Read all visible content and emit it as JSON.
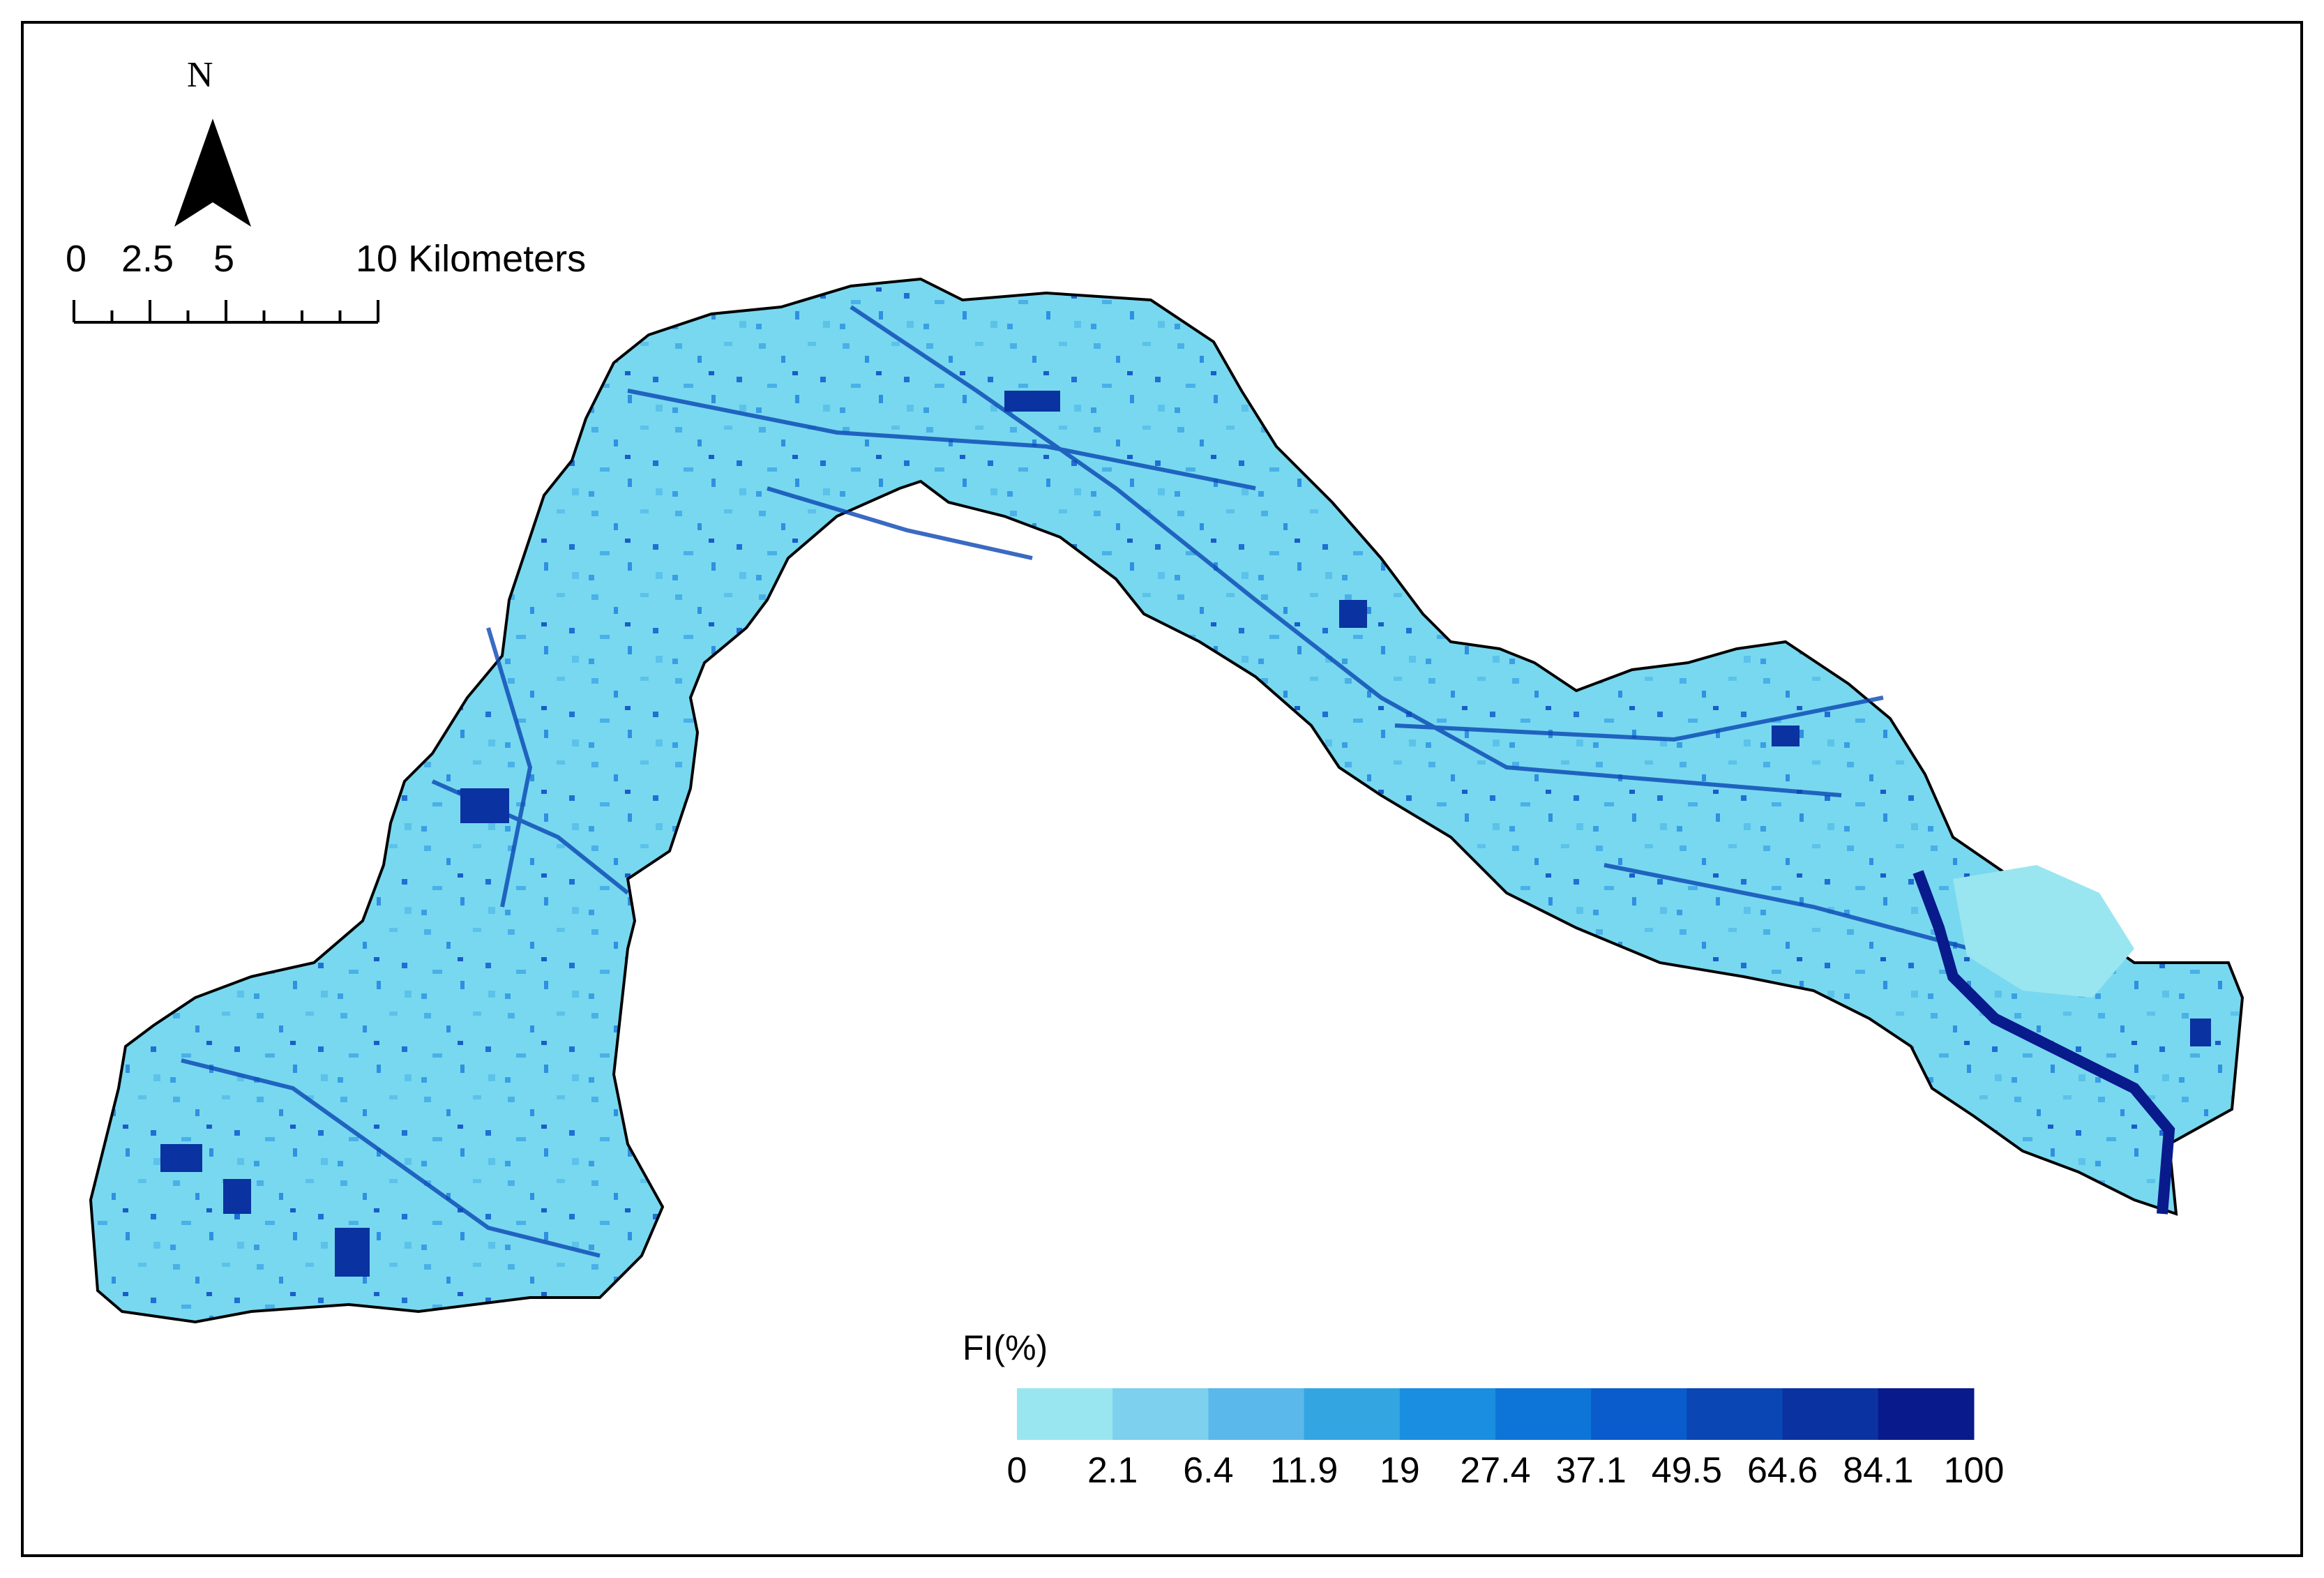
{
  "north_arrow": {
    "letter": "N"
  },
  "scale_bar": {
    "labels": [
      "0",
      "2.5",
      "5",
      "10 Kilometers"
    ],
    "units": "Kilometers",
    "max_km": 10
  },
  "legend": {
    "title": "FI(%)",
    "breaks": [
      "0",
      "2.1",
      "6.4",
      "11.9",
      "19",
      "27.4",
      "37.1",
      "49.5",
      "64.6",
      "84.1",
      "100"
    ],
    "colors": [
      "#99e6f0",
      "#7dd0ee",
      "#5ab8ea",
      "#33a6e2",
      "#1a8ee0",
      "#0d75d8",
      "#0a5ccc",
      "#0a46b4",
      "#0a32a0",
      "#081a8c"
    ]
  },
  "map": {
    "base_color": "#6fd4ee",
    "stroke_color": "#000000",
    "channel_color": "#0a46b4",
    "river_color": "#081a8c"
  }
}
